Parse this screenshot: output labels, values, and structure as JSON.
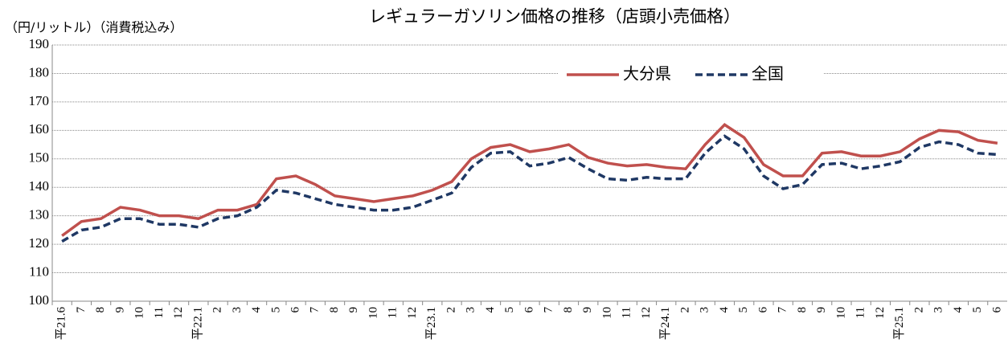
{
  "chart_data": {
    "type": "line",
    "title": "レギュラーガソリン価格の推移（店頭小売価格）",
    "y_axis_label": "（円/リットル）（消費税込み）",
    "categories": [
      "平21.6",
      "7",
      "8",
      "9",
      "10",
      "11",
      "12",
      "平22.1",
      "2",
      "3",
      "4",
      "5",
      "6",
      "7",
      "8",
      "9",
      "10",
      "11",
      "12",
      "平23.1",
      "2",
      "3",
      "4",
      "5",
      "6",
      "7",
      "8",
      "9",
      "10",
      "11",
      "12",
      "平24.1",
      "2",
      "3",
      "4",
      "5",
      "6",
      "7",
      "8",
      "9",
      "10",
      "11",
      "12",
      "平25.1",
      "2",
      "3",
      "4",
      "5",
      "6"
    ],
    "series": [
      {
        "name": "大分県",
        "color": "#c0504d",
        "dash": "solid",
        "values": [
          123,
          128,
          129,
          133,
          132,
          130,
          130,
          129,
          132,
          132,
          134,
          143,
          144,
          141,
          137,
          136,
          135,
          136,
          137,
          139,
          142,
          150,
          154,
          155,
          152.5,
          153.5,
          155,
          150.5,
          148.5,
          147.5,
          148,
          147,
          146.5,
          155,
          162,
          157.5,
          148,
          144,
          144,
          152,
          152.5,
          151,
          151,
          152.5,
          157,
          160,
          159.5,
          156.5,
          155.5
        ]
      },
      {
        "name": "全国",
        "color": "#1f3864",
        "dash": "dashed",
        "values": [
          121,
          125,
          126,
          129,
          129,
          127,
          127,
          126,
          129,
          130,
          133,
          139,
          138,
          136,
          134,
          133,
          132,
          132,
          133,
          135.5,
          138,
          147,
          152,
          152.5,
          147.5,
          148.5,
          150.5,
          146.5,
          143,
          142.5,
          143.5,
          143,
          143,
          152,
          158,
          153.5,
          144,
          139.5,
          141,
          148,
          148.5,
          146.5,
          147.5,
          149,
          154,
          156,
          155,
          152,
          151.5
        ]
      }
    ],
    "ylim": [
      100,
      190
    ],
    "yticks": [
      100,
      110,
      120,
      130,
      140,
      150,
      160,
      170,
      180,
      190
    ],
    "grid": true
  }
}
